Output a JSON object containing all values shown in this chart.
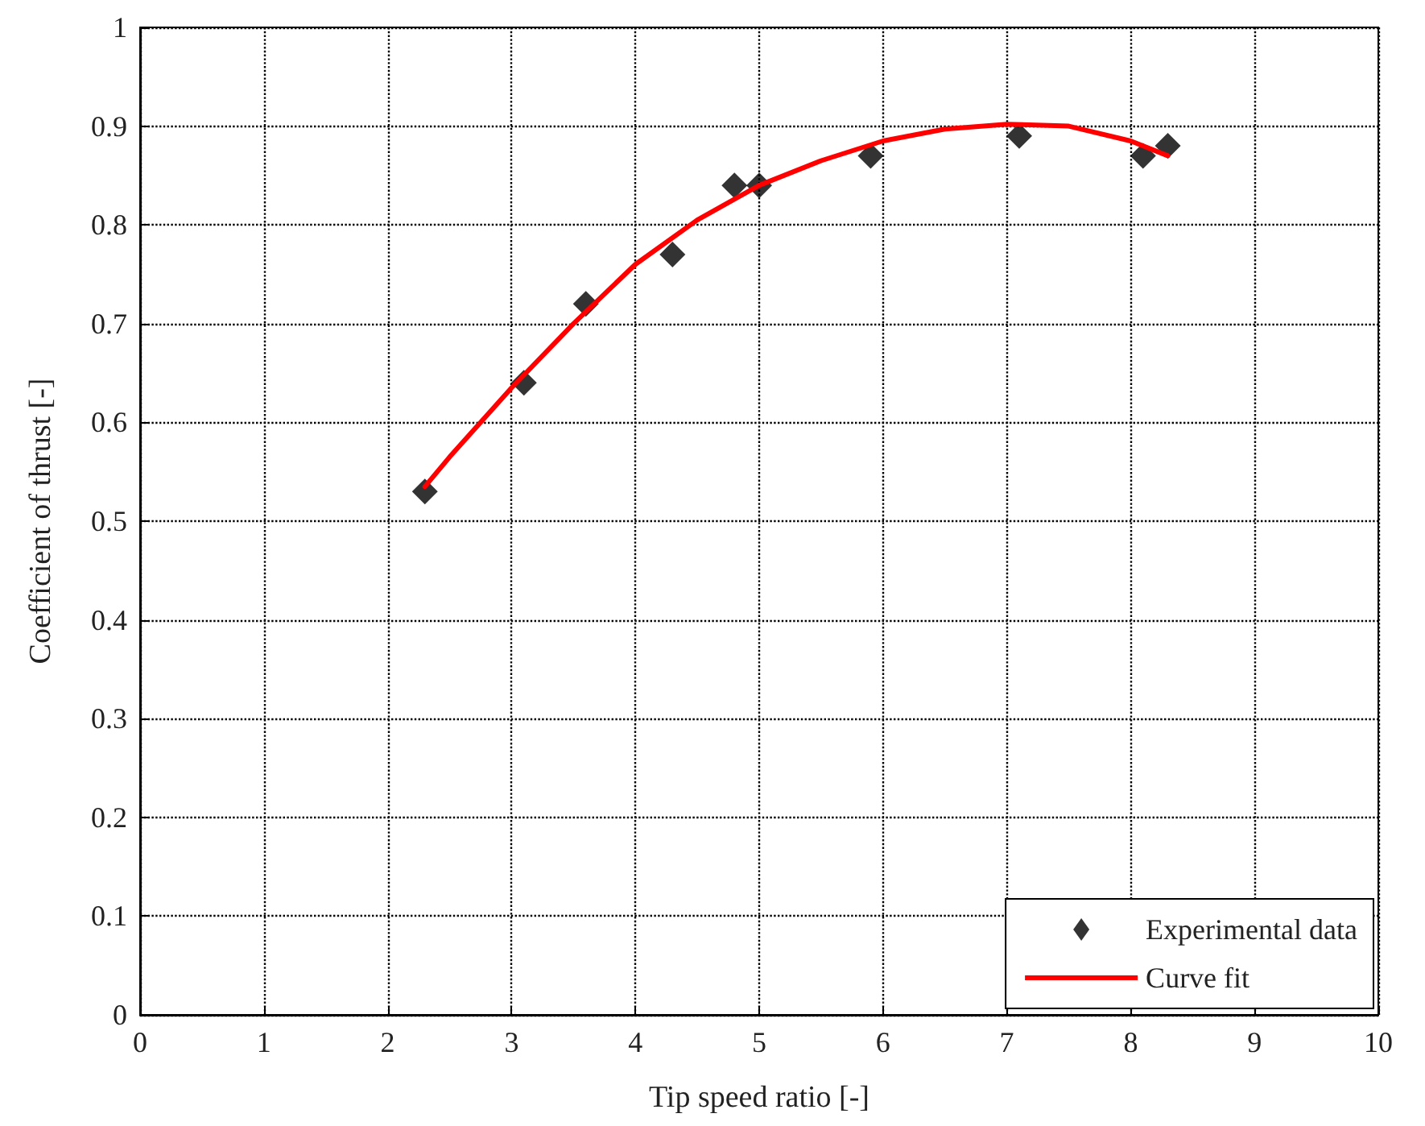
{
  "chart_data": {
    "type": "scatter",
    "xlabel": "Tip speed ratio [-]",
    "ylabel": "Coefficient of thrust [-]",
    "xlim": [
      0,
      10
    ],
    "xticks": [
      0,
      1,
      2,
      3,
      4,
      5,
      6,
      7,
      8,
      9,
      10
    ],
    "ylim": [
      0,
      1
    ],
    "yticks": [
      0,
      0.1,
      0.2,
      0.3,
      0.4,
      0.5,
      0.6,
      0.7,
      0.8,
      0.9,
      1
    ],
    "grid": true,
    "legend": "bottom right",
    "series": [
      {
        "name": "Experimental data",
        "marker": "diamond",
        "color": "#000000",
        "x": [
          2.3,
          3.1,
          3.6,
          4.3,
          4.8,
          5.0,
          5.9,
          7.1,
          8.1,
          8.3
        ],
        "values": [
          0.53,
          0.64,
          0.72,
          0.77,
          0.84,
          0.84,
          0.87,
          0.89,
          0.87,
          0.88
        ]
      },
      {
        "name": "Curve fit",
        "type": "line",
        "marker": "none",
        "line_style": "solid",
        "color": "#ff0000",
        "x": [
          2.3,
          2.5,
          3,
          3.5,
          4,
          4.5,
          5,
          5.5,
          6,
          6.5,
          7,
          7.5,
          8,
          8.3
        ],
        "values": [
          0.535,
          0.565,
          0.635,
          0.7,
          0.76,
          0.805,
          0.84,
          0.865,
          0.885,
          0.897,
          0.902,
          0.9,
          0.885,
          0.87
        ]
      }
    ]
  }
}
